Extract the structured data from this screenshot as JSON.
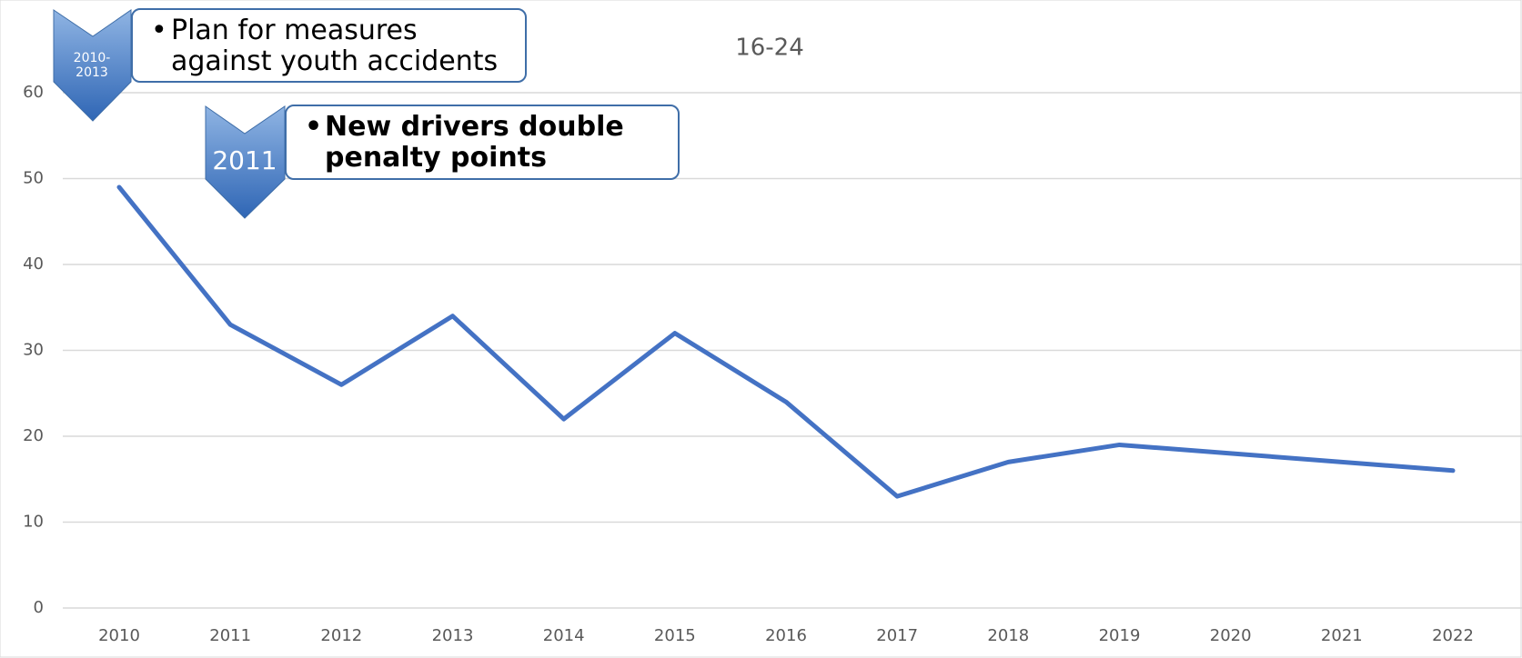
{
  "chart_data": {
    "type": "line",
    "title": "16-24",
    "categories": [
      "2010",
      "2011",
      "2012",
      "2013",
      "2014",
      "2015",
      "2016",
      "2017",
      "2018",
      "2019",
      "2020",
      "2021",
      "2022"
    ],
    "series": [
      {
        "color": "#4472c4",
        "values": [
          49,
          33,
          26,
          34,
          22,
          32,
          24,
          13,
          17,
          19,
          18,
          17,
          16
        ]
      }
    ],
    "ylim": [
      0,
      60
    ],
    "yticks": [
      0,
      10,
      20,
      30,
      40,
      50,
      60
    ],
    "grid": true,
    "annotations": [
      {
        "badge": [
          "2010-",
          "2013"
        ],
        "text": "Plan for measures against youth accidents"
      },
      {
        "badge": [
          "2011"
        ],
        "text": "New drivers double penalty points"
      }
    ]
  }
}
